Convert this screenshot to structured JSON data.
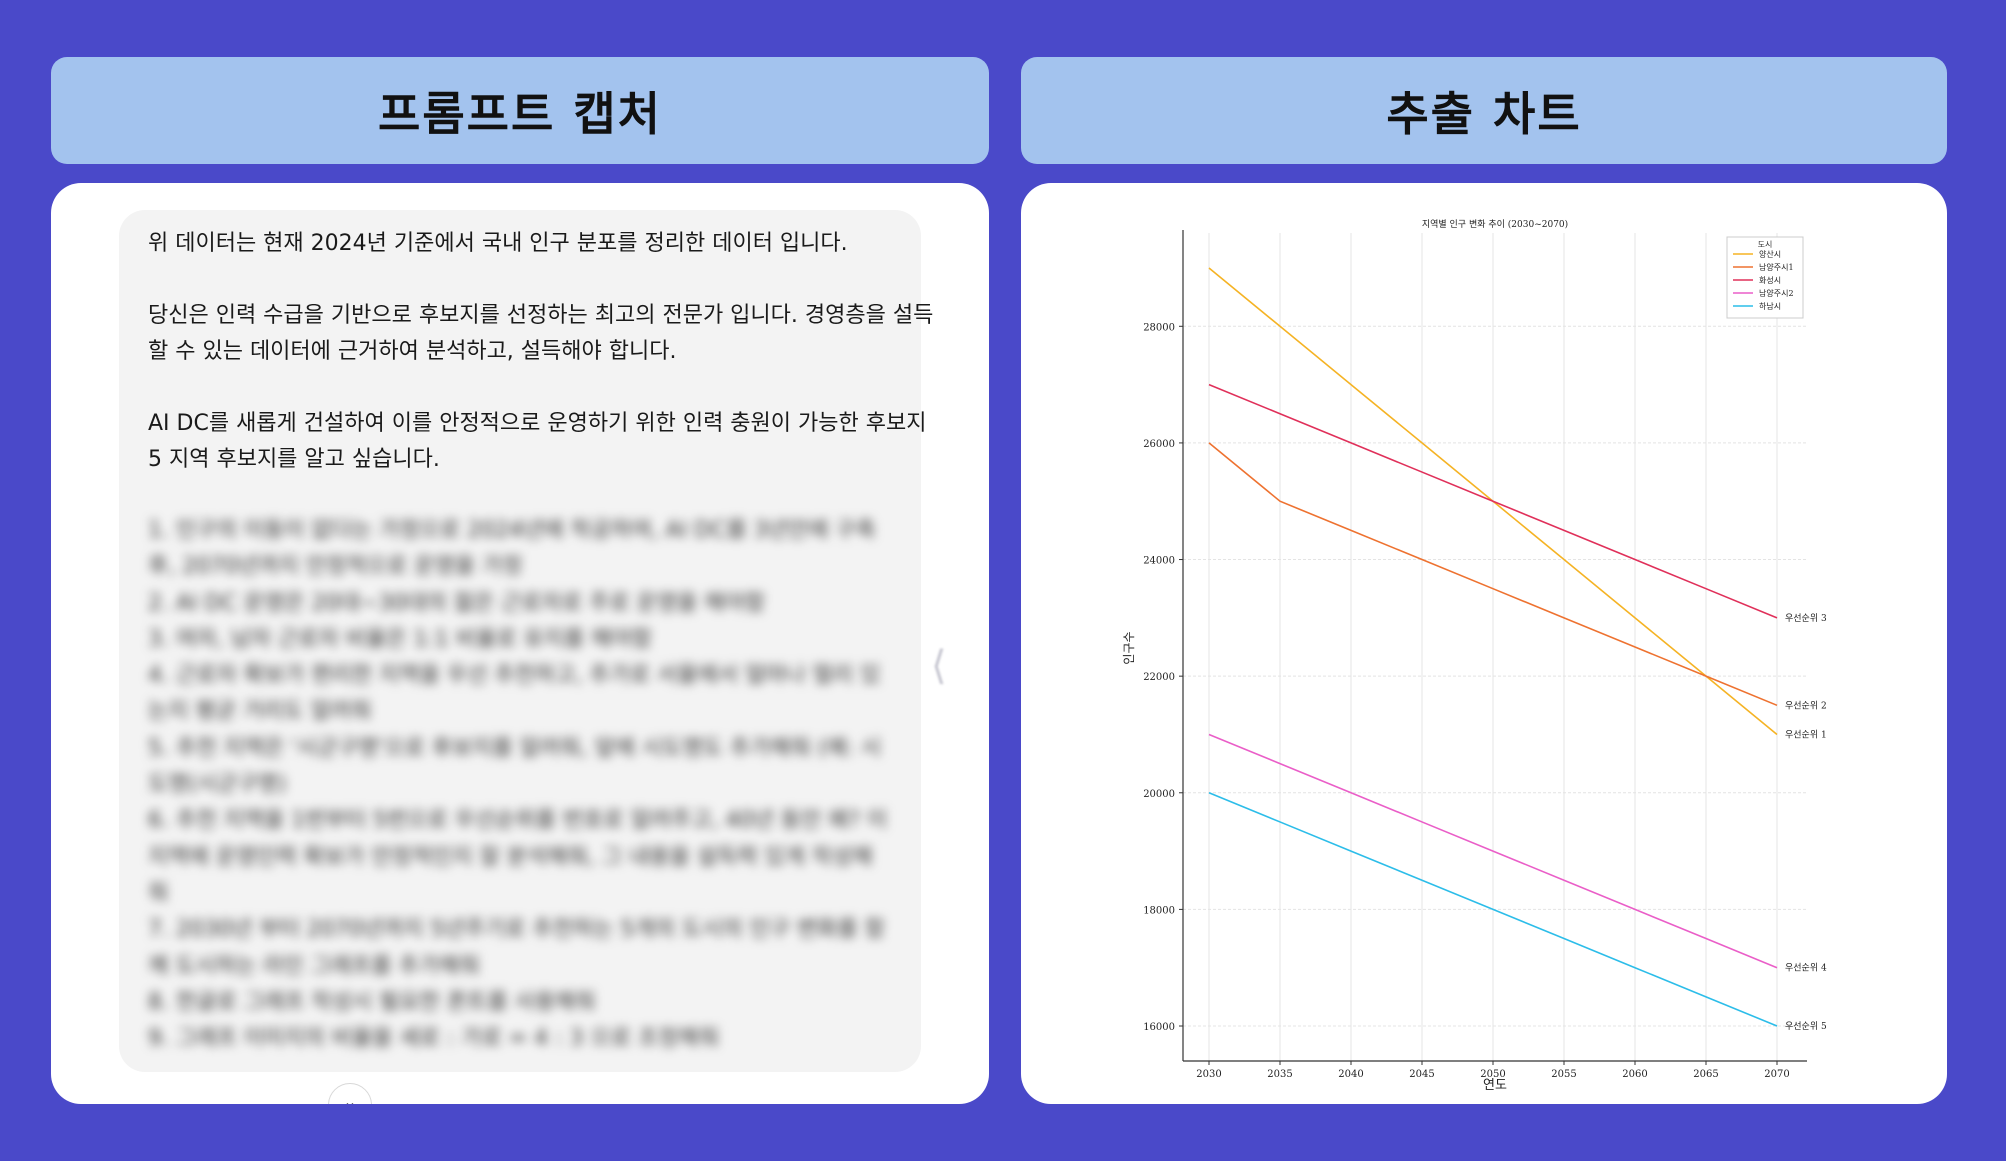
{
  "headers": {
    "left_title": "프롬프트 캡처",
    "right_title": "추출 차트"
  },
  "prompt": {
    "paragraphs": [
      "위 데이터는 현재 2024년 기준에서 국내 인구 분포를 정리한 데이터 입니다.",
      "당신은 인력 수급을 기반으로 후보지를 선정하는 최고의 전문가 입니다. 경영층을 설득 할 수 있는 데이터에 근거하여 분석하고, 설득해야 합니다.",
      "AI DC를 새롭게 건설하여 이를 안정적으로 운영하기 위한 인력 충원이 가능한 후보지 5 지역 후보지를 알고 싶습니다."
    ],
    "blurred_lines": [
      "1. 인구의 이동이 없다는 가정으로 2024년에 착공하여, AI DC를 3년안에 구축",
      "후, 2070년까지 안정적으로 운영을 가정",
      "2. AI DC 운영은 20대~30대의 젊은 근로자로 주로 운영을 해야함",
      "3. 여자, 남자 근로자 비율은 1:1 비율로 유지를 해야함",
      "4. 근로자 확보가 편리한 지역을 우선 추천하고, 추가로 서울에서 얼마나 멀리 있",
      "는지 평균 거리도 알려줘",
      "5. 추천 지역은 '시군구명'으로 후보지를 알려줘, 앞에 시도명도 추가해줘 (예: 시",
      "도명(시군구명)",
      "6. 추천 지역을 1번부터 5번으로 우선순위를 번호로 알려주고, 40년 동안 왜? 이",
      "지역에 운영인력 확보가 안정적인지 잘 분석해줘, 그 내용을 설득력 있게 작성해",
      "줘",
      "7. 2030년 부터 2070년까지 5년주기로 추천하는 5개의 도시의 인구 변화를 함",
      "께 도시하는 라인 그래프를 추가해줘",
      "8. 한글로 그래프 작성시 필요한 폰트를 사용해줘",
      "9. 그래프 이미지의 비율을 세로 : 가로 = 4 : 3 으로 조정해줘"
    ],
    "scroll_icon": "chevron-down-icon"
  },
  "chart_data": {
    "type": "line",
    "title": "지역별 인구 변화 추이 (2030~2070)",
    "xlabel": "연도",
    "ylabel": "인구수",
    "x": [
      2030,
      2035,
      2040,
      2045,
      2050,
      2055,
      2060,
      2065,
      2070
    ],
    "xlim": [
      2030,
      2070
    ],
    "ylim": [
      15400,
      29600
    ],
    "yticks": [
      16000,
      18000,
      20000,
      22000,
      24000,
      26000,
      28000
    ],
    "grid": true,
    "legend": {
      "title": "도시",
      "placement": "top-right"
    },
    "series": [
      {
        "name": "양산시",
        "color": "#f5b324",
        "values": [
          29000,
          28000,
          27000,
          26000,
          25000,
          24000,
          23000,
          22000,
          21000
        ],
        "end_label": "우선순위 1"
      },
      {
        "name": "남양주시1",
        "color": "#ee7230",
        "values": [
          26000,
          25000,
          24500,
          24000,
          23500,
          23000,
          22500,
          22000,
          21500
        ],
        "end_label": "우선순위 2"
      },
      {
        "name": "화성시",
        "color": "#e0305a",
        "values": [
          27000,
          26500,
          26000,
          25500,
          25000,
          24500,
          24000,
          23500,
          23000
        ],
        "end_label": "우선순위 3"
      },
      {
        "name": "남양주시2",
        "color": "#ea5ec8",
        "values": [
          21000,
          20500,
          20000,
          19500,
          19000,
          18500,
          18000,
          17500,
          17000
        ],
        "end_label": "우선순위 4"
      },
      {
        "name": "하남시",
        "color": "#2cbde9",
        "values": [
          20000,
          19500,
          19000,
          18500,
          18000,
          17500,
          17000,
          16500,
          16000
        ],
        "end_label": "우선순위 5"
      }
    ]
  }
}
